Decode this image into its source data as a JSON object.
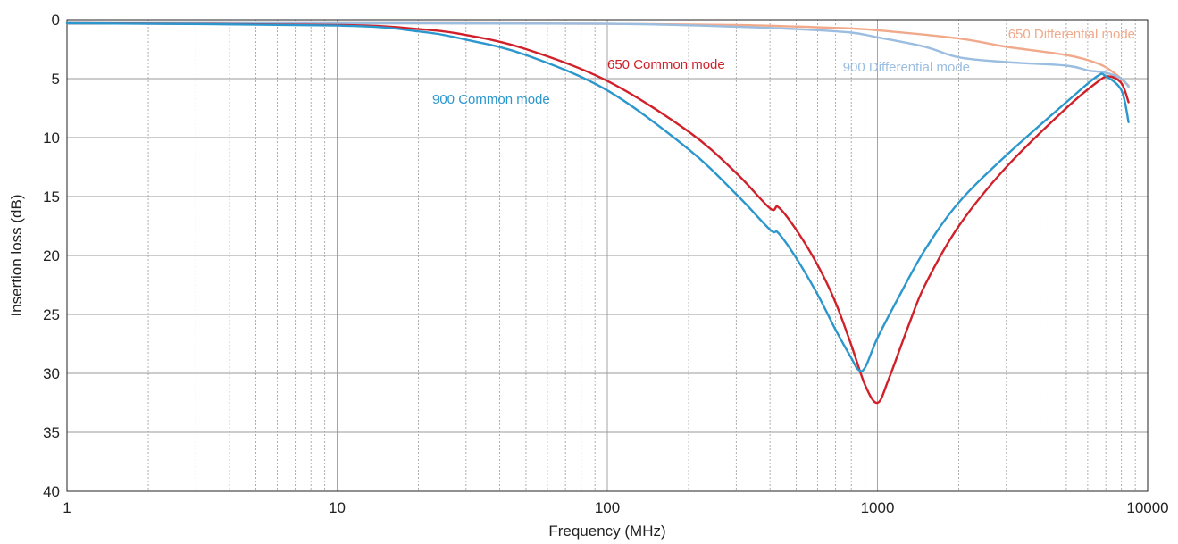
{
  "chart_data": {
    "type": "line",
    "xlabel": "Frequency (MHz)",
    "ylabel": "Insertion loss (dB)",
    "xscale": "log",
    "xlim": [
      1,
      10000
    ],
    "ylim": [
      0,
      40
    ],
    "y_inverted": true,
    "grid": true,
    "x_ticks": [
      {
        "value": 1,
        "label": "1"
      },
      {
        "value": 10,
        "label": "10"
      },
      {
        "value": 100,
        "label": "100"
      },
      {
        "value": 1000,
        "label": "1000"
      },
      {
        "value": 10000,
        "label": "10000"
      }
    ],
    "y_ticks": [
      {
        "value": 0,
        "label": "0"
      },
      {
        "value": 5,
        "label": "5"
      },
      {
        "value": 10,
        "label": "10"
      },
      {
        "value": 15,
        "label": "15"
      },
      {
        "value": 20,
        "label": "20"
      },
      {
        "value": 25,
        "label": "25"
      },
      {
        "value": 30,
        "label": "30"
      },
      {
        "value": 35,
        "label": "35"
      },
      {
        "value": 40,
        "label": "40"
      }
    ],
    "series": [
      {
        "name": "650 Differential mode",
        "color": "#f0a98a",
        "x": [
          1,
          10,
          30,
          100,
          300,
          700,
          1000,
          2000,
          3000,
          5000,
          6500,
          7500,
          8500
        ],
        "y": [
          0.3,
          0.3,
          0.3,
          0.35,
          0.45,
          0.7,
          0.9,
          1.6,
          2.3,
          3.0,
          3.7,
          4.5,
          5.6
        ]
      },
      {
        "name": "900 Differential mode",
        "color": "#9bbde0",
        "x": [
          1,
          10,
          100,
          300,
          500,
          800,
          1000,
          1500,
          2000,
          3000,
          5000,
          6000,
          7000,
          8000,
          8500
        ],
        "y": [
          0.3,
          0.3,
          0.35,
          0.6,
          0.8,
          1.1,
          1.5,
          2.3,
          3.2,
          3.6,
          3.9,
          4.3,
          4.5,
          5.0,
          5.7
        ]
      },
      {
        "name": "650 Common mode",
        "color": "#d0212a",
        "x": [
          1,
          10,
          20,
          30,
          50,
          100,
          200,
          300,
          400,
          430,
          500,
          600,
          700,
          800,
          900,
          1000,
          1100,
          1300,
          1500,
          2000,
          3000,
          5000,
          6500,
          7200,
          8000,
          8500
        ],
        "y": [
          0.3,
          0.45,
          0.8,
          1.3,
          2.5,
          5.2,
          9.5,
          13.0,
          16.0,
          15.9,
          17.8,
          20.8,
          24.0,
          27.6,
          31.0,
          32.5,
          30.5,
          26.0,
          22.5,
          17.5,
          12.5,
          7.5,
          5.3,
          4.8,
          5.4,
          7.0
        ]
      },
      {
        "name": "900 Common mode",
        "color": "#2b97cc",
        "x": [
          1,
          10,
          20,
          30,
          50,
          100,
          200,
          300,
          400,
          430,
          500,
          600,
          700,
          800,
          850,
          900,
          1000,
          1200,
          1500,
          2000,
          3000,
          5000,
          6500,
          7000,
          8000,
          8500
        ],
        "y": [
          0.3,
          0.5,
          1.0,
          1.7,
          3.0,
          6.0,
          11.0,
          14.8,
          17.8,
          18.1,
          20.2,
          23.3,
          26.3,
          28.7,
          29.7,
          29.5,
          27.0,
          23.5,
          19.5,
          15.5,
          11.5,
          7.0,
          4.8,
          4.8,
          6.0,
          8.7
        ]
      }
    ]
  }
}
